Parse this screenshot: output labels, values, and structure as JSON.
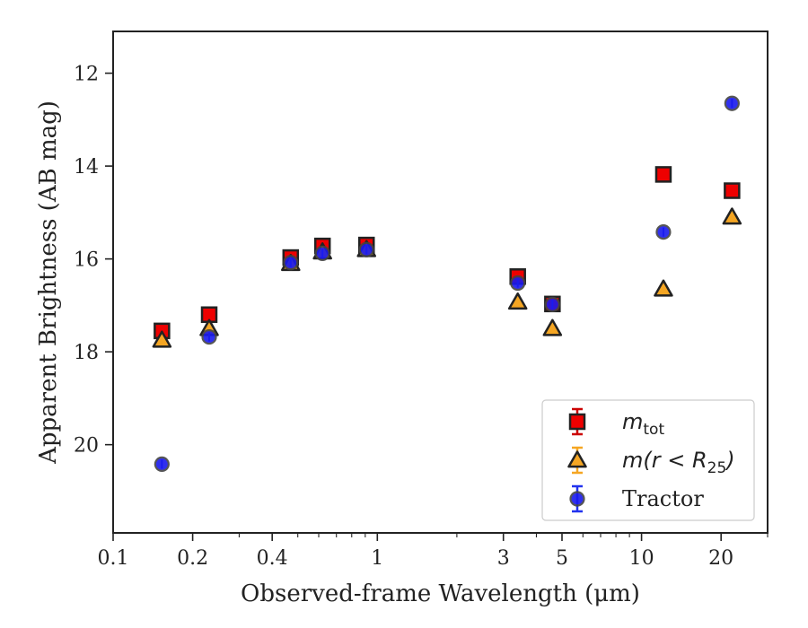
{
  "chart_data": {
    "type": "scatter",
    "xlabel": "Observed-frame Wavelength (μm)",
    "ylabel": "Apparent Brightness (AB mag)",
    "xscale": "log",
    "xlim": [
      0.1,
      30
    ],
    "ylim": [
      21.9,
      11.1
    ],
    "y_inverted": true,
    "x_ticks": [
      0.1,
      0.2,
      0.4,
      1,
      3,
      5,
      10,
      20
    ],
    "x_tick_labels": [
      "0.1",
      "0.2",
      "0.4",
      "1",
      "3",
      "5",
      "10",
      "20"
    ],
    "y_ticks": [
      12,
      14,
      16,
      18,
      20
    ],
    "y_tick_labels": [
      "12",
      "14",
      "16",
      "18",
      "20"
    ],
    "legend_position": "lower-right",
    "series": [
      {
        "key": "mtot",
        "legend": {
          "base": "m",
          "sub": "tot"
        },
        "marker": "square",
        "face_color": "#ee0000",
        "edge_color": "#222222",
        "err_color": "#cc0000",
        "points": [
          {
            "x": 0.153,
            "y": 17.55
          },
          {
            "x": 0.231,
            "y": 17.2
          },
          {
            "x": 0.47,
            "y": 15.97
          },
          {
            "x": 0.62,
            "y": 15.72
          },
          {
            "x": 0.91,
            "y": 15.7
          },
          {
            "x": 3.4,
            "y": 16.38
          },
          {
            "x": 4.6,
            "y": 16.97
          },
          {
            "x": 12.1,
            "y": 14.18
          },
          {
            "x": 22.0,
            "y": 14.53
          }
        ]
      },
      {
        "key": "mr25",
        "legend": {
          "pre": "m(r < R",
          "sub": "25",
          "post": ")"
        },
        "marker": "triangle",
        "face_color": "#f5a623",
        "edge_color": "#222222",
        "err_color": "#f5a623",
        "points": [
          {
            "x": 0.153,
            "y": 17.75
          },
          {
            "x": 0.231,
            "y": 17.5
          },
          {
            "x": 0.47,
            "y": 16.1
          },
          {
            "x": 0.62,
            "y": 15.85
          },
          {
            "x": 0.91,
            "y": 15.8
          },
          {
            "x": 3.4,
            "y": 16.93
          },
          {
            "x": 4.6,
            "y": 17.5
          },
          {
            "x": 12.1,
            "y": 16.65
          },
          {
            "x": 22.0,
            "y": 15.1
          }
        ]
      },
      {
        "key": "tractor",
        "legend": {
          "text": "Tractor"
        },
        "marker": "circle",
        "face_color": "#1a1aee",
        "edge_color": "#444444",
        "err_color": "#2233ee",
        "points": [
          {
            "x": 0.153,
            "y": 20.42
          },
          {
            "x": 0.231,
            "y": 17.68
          },
          {
            "x": 0.47,
            "y": 16.08
          },
          {
            "x": 0.62,
            "y": 15.88
          },
          {
            "x": 0.91,
            "y": 15.8
          },
          {
            "x": 3.4,
            "y": 16.52
          },
          {
            "x": 4.6,
            "y": 16.98
          },
          {
            "x": 12.1,
            "y": 15.42
          },
          {
            "x": 22.0,
            "y": 12.65
          }
        ]
      }
    ]
  }
}
